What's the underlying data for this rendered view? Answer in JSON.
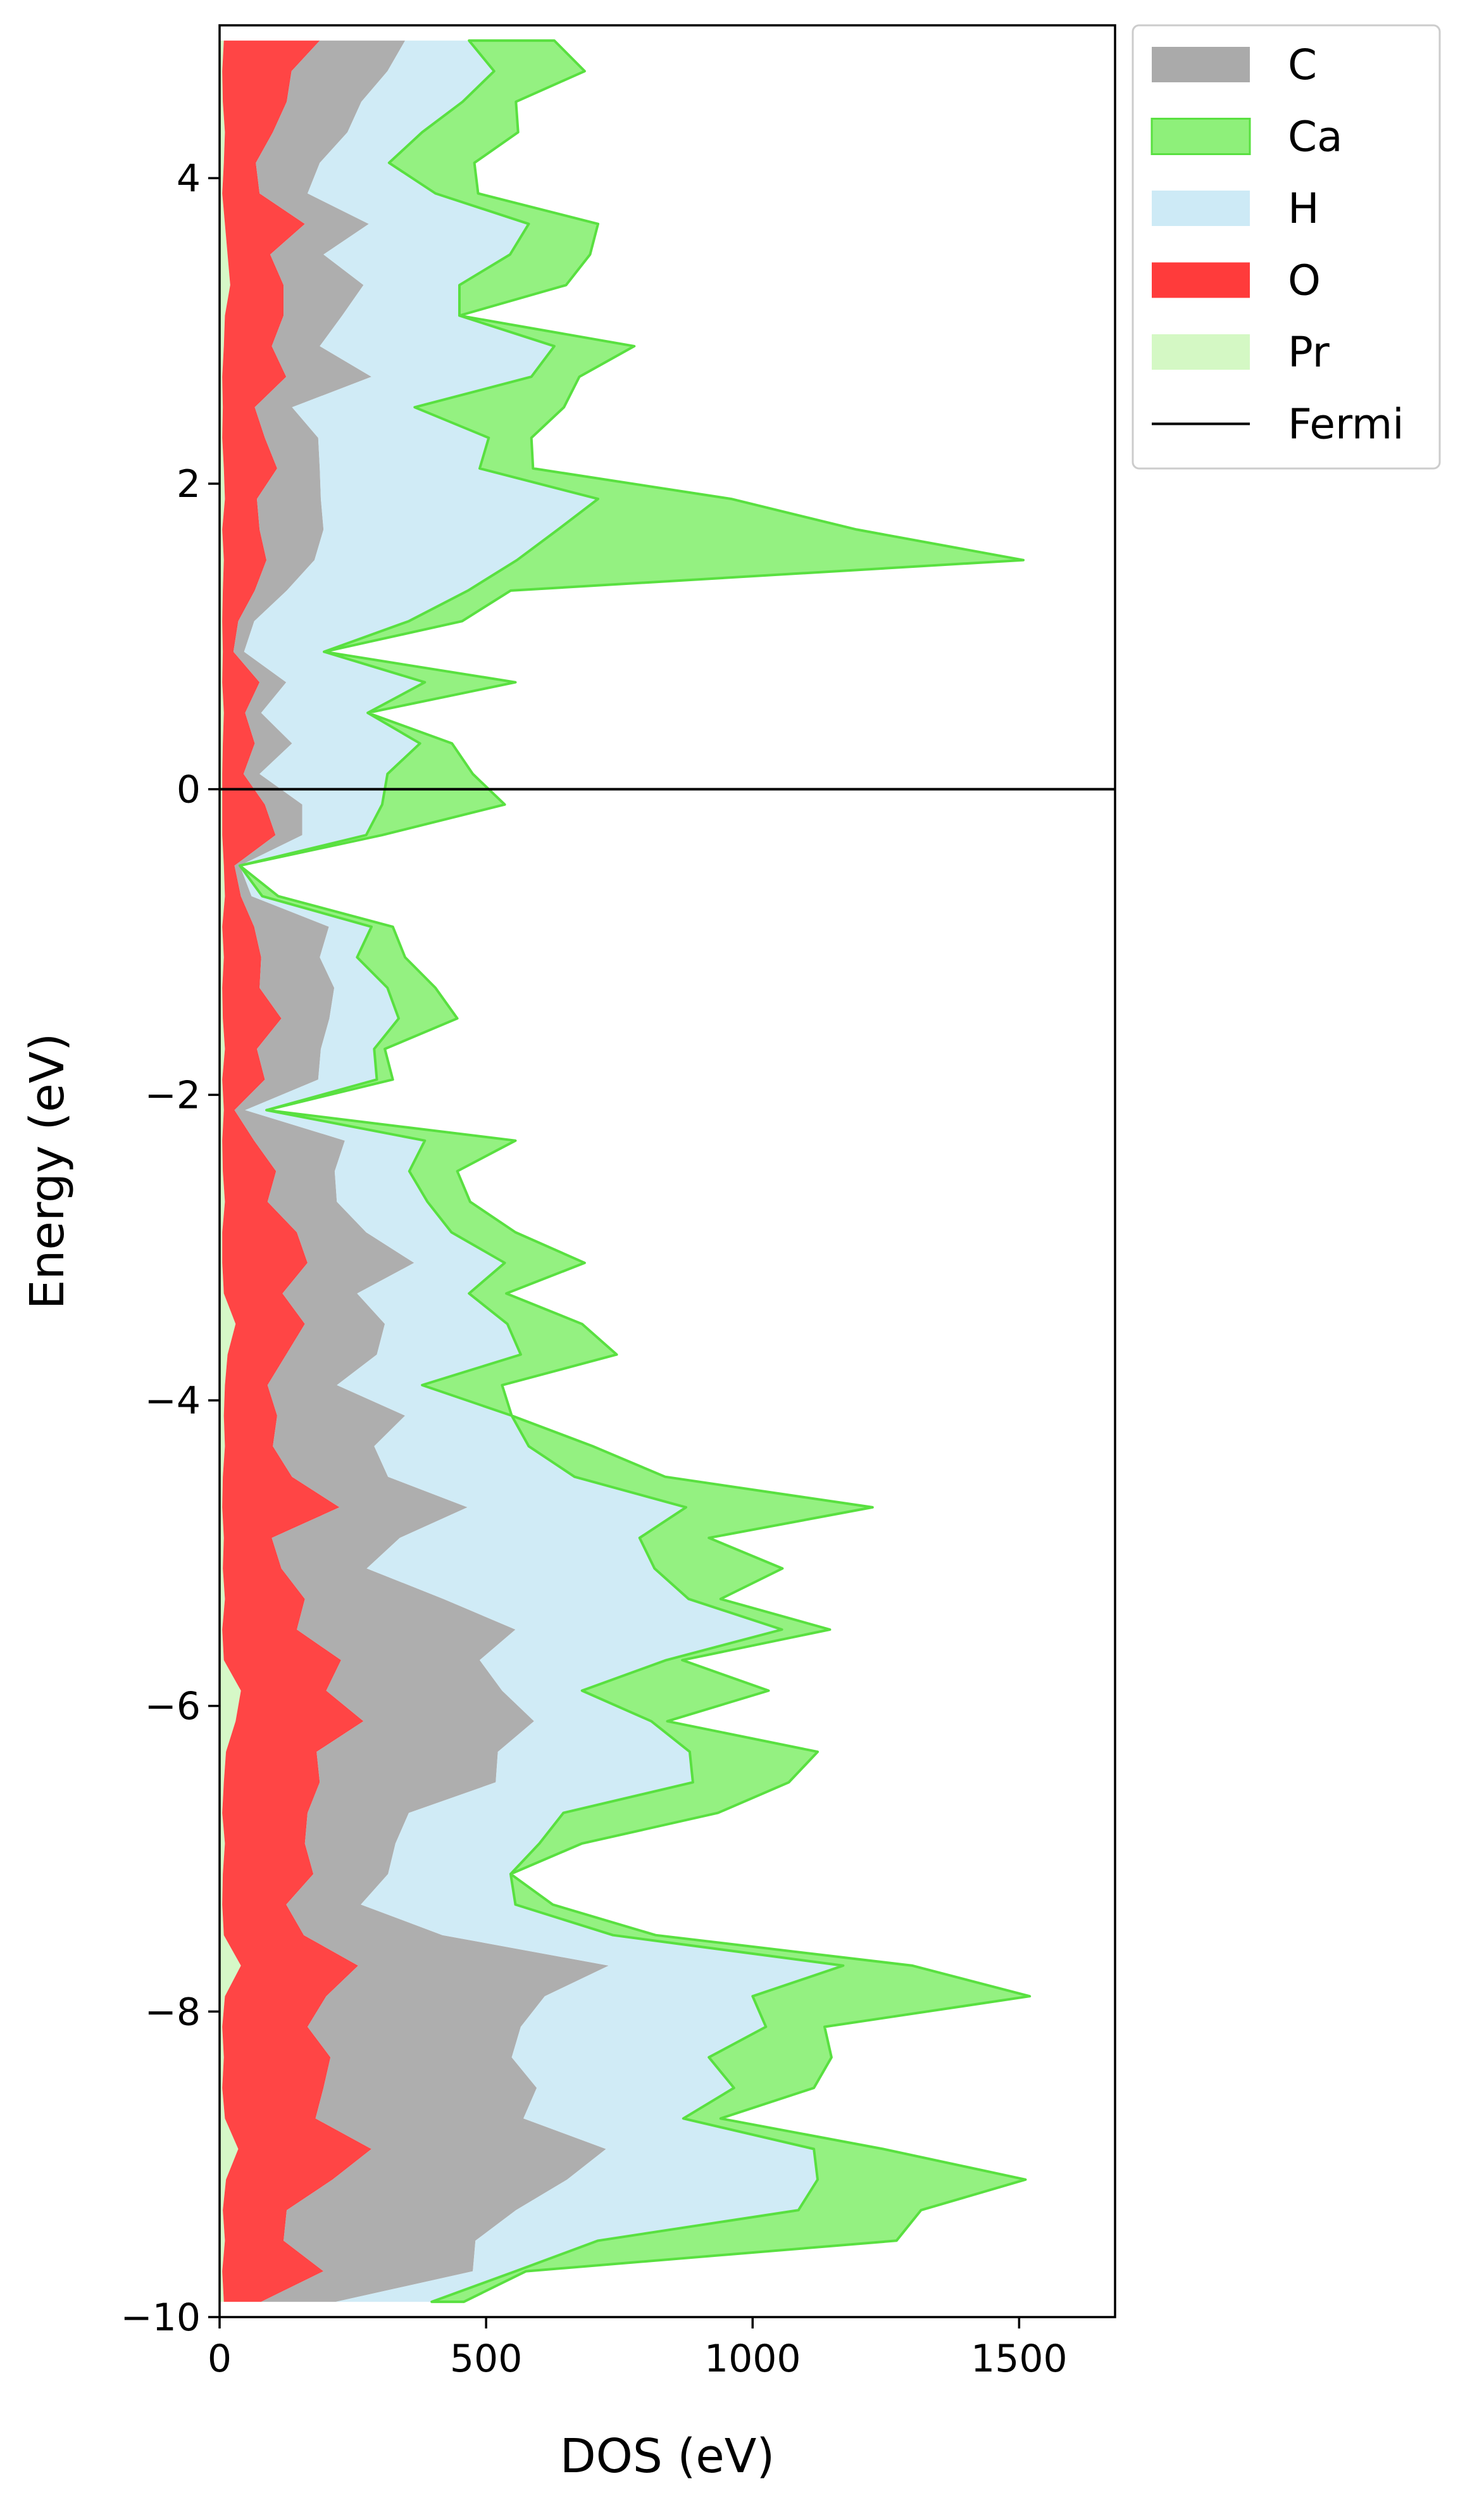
{
  "chart_data": {
    "type": "area",
    "orientation": "horizontal",
    "xlabel": "DOS (eV)",
    "ylabel": "Energy (eV)",
    "xlim": [
      0,
      1680
    ],
    "ylim": [
      -10,
      5
    ],
    "xticks": [
      0,
      500,
      1000,
      1500
    ],
    "xtick_labels": [
      "0",
      "500",
      "1000",
      "1500"
    ],
    "yticks": [
      -10,
      -8,
      -6,
      -4,
      -2,
      0,
      2,
      4
    ],
    "ytick_labels": [
      "−10",
      "−8",
      "−6",
      "−4",
      "−2",
      "0",
      "2",
      "4"
    ],
    "stacked": true,
    "grid": false,
    "legend_position": "outside-top-right",
    "fermi_level": 0,
    "energy": [
      -9.9,
      -9.7,
      -9.5,
      -9.3,
      -9.1,
      -8.9,
      -8.7,
      -8.5,
      -8.3,
      -8.1,
      -7.9,
      -7.7,
      -7.5,
      -7.3,
      -7.1,
      -6.9,
      -6.7,
      -6.5,
      -6.3,
      -6.1,
      -5.9,
      -5.7,
      -5.5,
      -5.3,
      -5.1,
      -4.9,
      -4.7,
      -4.5,
      -4.3,
      -4.1,
      -3.9,
      -3.7,
      -3.5,
      -3.3,
      -3.1,
      -2.9,
      -2.7,
      -2.5,
      -2.3,
      -2.1,
      -1.9,
      -1.7,
      -1.5,
      -1.3,
      -1.1,
      -0.9,
      -0.7,
      -0.5,
      -0.3,
      -0.1,
      0.1,
      0.3,
      0.5,
      0.7,
      0.9,
      1.1,
      1.3,
      1.5,
      1.7,
      1.9,
      2.1,
      2.3,
      2.5,
      2.7,
      2.9,
      3.1,
      3.3,
      3.5,
      3.7,
      3.9,
      4.1,
      4.3,
      4.5,
      4.7,
      4.9
    ],
    "series": [
      {
        "name": "Pr",
        "color": "#d4f8c4",
        "values": [
          8,
          5,
          10,
          6,
          12,
          35,
          10,
          5,
          8,
          5,
          10,
          40,
          8,
          5,
          6,
          10,
          5,
          8,
          12,
          30,
          40,
          8,
          5,
          10,
          6,
          8,
          5,
          6,
          10,
          8,
          10,
          15,
          30,
          8,
          5,
          5,
          10,
          6,
          5,
          8,
          5,
          10,
          6,
          5,
          8,
          5,
          10,
          8,
          5,
          5,
          5,
          6,
          8,
          5,
          6,
          5,
          6,
          8,
          5,
          10,
          8,
          5,
          6,
          5,
          8,
          10,
          20,
          15,
          10,
          5,
          8,
          10,
          6,
          5,
          8
        ]
      },
      {
        "name": "O",
        "color": "#ff3b3b",
        "values": [
          70,
          190,
          110,
          120,
          200,
          250,
          170,
          190,
          200,
          160,
          190,
          220,
          150,
          120,
          170,
          150,
          160,
          180,
          170,
          240,
          160,
          220,
          140,
          150,
          110,
          90,
          220,
          130,
          90,
          100,
          80,
          110,
          130,
          110,
          160,
          140,
          80,
          100,
          60,
          20,
          80,
          60,
          110,
          70,
          70,
          60,
          30,
          20,
          100,
          80,
          40,
          60,
          40,
          70,
          20,
          30,
          60,
          80,
          70,
          60,
          100,
          80,
          60,
          120,
          90,
          110,
          100,
          80,
          150,
          70,
          60,
          90,
          120,
          130,
          180
        ]
      },
      {
        "name": "C",
        "color": "#aaaaaa",
        "values": [
          140,
          280,
          360,
          430,
          440,
          440,
          390,
          400,
          340,
          400,
          410,
          470,
          260,
          140,
          140,
          170,
          190,
          330,
          340,
          320,
          330,
          260,
          410,
          260,
          160,
          240,
          240,
          180,
          190,
          240,
          130,
          170,
          150,
          140,
          200,
          130,
          130,
          110,
          170,
          20,
          100,
          120,
          90,
          140,
          110,
          140,
          20,
          10,
          50,
          70,
          30,
          70,
          30,
          50,
          20,
          30,
          60,
          90,
          120,
          120,
          80,
          100,
          70,
          160,
          90,
          110,
          150,
          100,
          120,
          90,
          120,
          140,
          140,
          180,
          160
        ]
      },
      {
        "name": "H",
        "color": "#cdeaf6",
        "values": [
          180,
          80,
          230,
          530,
          470,
          390,
          300,
          370,
          370,
          460,
          390,
          440,
          320,
          290,
          230,
          270,
          290,
          370,
          360,
          220,
          150,
          350,
          500,
          460,
          540,
          450,
          410,
          350,
          290,
          200,
          160,
          270,
          230,
          210,
          170,
          160,
          170,
          140,
          150,
          40,
          110,
          100,
          130,
          100,
          70,
          80,
          20,
          0,
          120,
          150,
          240,
          240,
          200,
          260,
          150,
          290,
          340,
          380,
          440,
          520,
          300,
          320,
          230,
          300,
          440,
          220,
          180,
          350,
          300,
          240,
          130,
          140,
          190,
          200,
          120
        ]
      },
      {
        "name": "Ca",
        "color": "#8ef07a",
        "edge": "#59e040",
        "values": [
          60,
          20,
          560,
          230,
          390,
          130,
          70,
          150,
          230,
          110,
          520,
          130,
          80,
          70,
          0,
          80,
          290,
          180,
          240,
          30,
          350,
          30,
          90,
          60,
          240,
          130,
          350,
          170,
          120,
          0,
          150,
          180,
          140,
          70,
          150,
          120,
          80,
          90,
          170,
          0,
          30,
          20,
          110,
          90,
          90,
          40,
          30,
          0,
          30,
          230,
          160,
          60,
          0,
          170,
          0,
          100,
          80,
          950,
          560,
          250,
          100,
          80,
          280,
          90,
          150,
          0,
          200,
          150,
          130,
          80,
          160,
          180,
          100,
          170,
          160
        ]
      }
    ]
  },
  "legend": {
    "items": [
      {
        "label": "C",
        "color": "#aaaaaa",
        "kind": "patch"
      },
      {
        "label": "Ca",
        "color": "#8ef07a",
        "kind": "patch"
      },
      {
        "label": "H",
        "color": "#cdeaf6",
        "kind": "patch"
      },
      {
        "label": "O",
        "color": "#ff3b3b",
        "kind": "patch"
      },
      {
        "label": "Pr",
        "color": "#d4f8c4",
        "kind": "patch"
      },
      {
        "label": "Fermi",
        "color": "#000000",
        "kind": "line"
      }
    ]
  }
}
